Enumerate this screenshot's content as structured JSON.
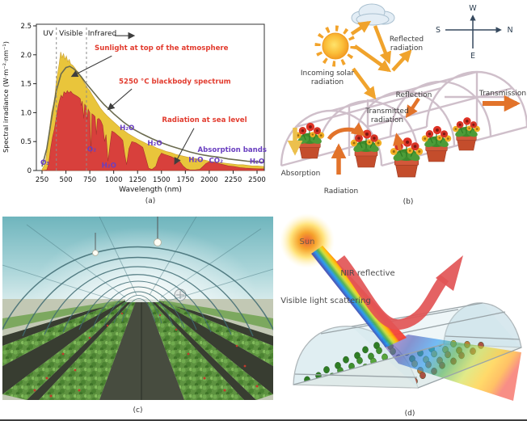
{
  "figure": {
    "captions": {
      "a": "(a)",
      "b": "(b)",
      "c": "(c)",
      "d": "(d)"
    },
    "panel_b": {
      "labels": {
        "reflected_1": "Reflected",
        "reflected_2": "radiation",
        "incoming_1": "Incoming solar",
        "incoming_2": "radiation",
        "reflection": "Reflection",
        "transmitted_1": "Transmitted",
        "transmitted_2": "radiation",
        "transmission": "Transmission",
        "absorption": "Absorption",
        "radiation": "Radiation"
      },
      "compass": {
        "up": "W",
        "right": "N",
        "left": "S",
        "down": "E"
      },
      "arrow_color": "#f0a32c",
      "arrow_color_dark": "#e2732a",
      "arrow_color_yellow": "#ecc04d"
    },
    "panel_d": {
      "sun_label": "Sun",
      "nir_label": "NIR reflective",
      "visible_label": "Visible light scattering",
      "arrow_color": "#e25556"
    }
  },
  "chart_data": {
    "type": "area",
    "xlabel": "Wavelength (nm)",
    "ylabel": "Spectral irradiance (W·m⁻²·nm⁻¹)",
    "xlim": [
      250,
      2600
    ],
    "ylim": [
      0,
      2.5
    ],
    "xticks": [
      250,
      500,
      750,
      1000,
      1250,
      1500,
      1750,
      2000,
      2250,
      2500
    ],
    "yticks": [
      0,
      0.5,
      1.0,
      1.5,
      2.0,
      2.5
    ],
    "ytick_labels": [
      "0",
      "0.5",
      "1.0",
      "1.5",
      "2.0",
      "2.5"
    ],
    "visible_band_nm": [
      400,
      715
    ],
    "grid": false,
    "legend": "inline annotations",
    "series": [
      {
        "name": "Sunlight at top of the atmosphere",
        "style": "area",
        "color": "#e9c53b",
        "points": [
          [
            250,
            0.02
          ],
          [
            270,
            0.08
          ],
          [
            290,
            0.2
          ],
          [
            310,
            0.45
          ],
          [
            330,
            0.75
          ],
          [
            350,
            1.0
          ],
          [
            370,
            1.15
          ],
          [
            385,
            1.3
          ],
          [
            400,
            1.55
          ],
          [
            415,
            1.7
          ],
          [
            430,
            1.85
          ],
          [
            445,
            2.05
          ],
          [
            460,
            1.95
          ],
          [
            475,
            2.02
          ],
          [
            490,
            1.92
          ],
          [
            505,
            1.98
          ],
          [
            520,
            1.88
          ],
          [
            535,
            1.92
          ],
          [
            550,
            1.84
          ],
          [
            570,
            1.82
          ],
          [
            590,
            1.78
          ],
          [
            610,
            1.73
          ],
          [
            630,
            1.7
          ],
          [
            650,
            1.63
          ],
          [
            670,
            1.58
          ],
          [
            690,
            1.52
          ],
          [
            710,
            1.47
          ],
          [
            730,
            1.42
          ],
          [
            750,
            1.38
          ],
          [
            770,
            1.32
          ],
          [
            800,
            1.24
          ],
          [
            830,
            1.16
          ],
          [
            860,
            1.08
          ],
          [
            900,
            1.0
          ],
          [
            940,
            0.93
          ],
          [
            980,
            0.87
          ],
          [
            1020,
            0.81
          ],
          [
            1060,
            0.75
          ],
          [
            1100,
            0.7
          ],
          [
            1150,
            0.64
          ],
          [
            1200,
            0.59
          ],
          [
            1250,
            0.54
          ],
          [
            1300,
            0.5
          ],
          [
            1350,
            0.46
          ],
          [
            1400,
            0.43
          ],
          [
            1450,
            0.39
          ],
          [
            1500,
            0.36
          ],
          [
            1550,
            0.33
          ],
          [
            1600,
            0.31
          ],
          [
            1650,
            0.28
          ],
          [
            1700,
            0.26
          ],
          [
            1750,
            0.24
          ],
          [
            1800,
            0.22
          ],
          [
            1850,
            0.21
          ],
          [
            1900,
            0.19
          ],
          [
            1950,
            0.18
          ],
          [
            2000,
            0.16
          ],
          [
            2050,
            0.15
          ],
          [
            2100,
            0.14
          ],
          [
            2150,
            0.13
          ],
          [
            2200,
            0.12
          ],
          [
            2250,
            0.11
          ],
          [
            2300,
            0.1
          ],
          [
            2350,
            0.1
          ],
          [
            2400,
            0.09
          ],
          [
            2450,
            0.08
          ],
          [
            2500,
            0.08
          ],
          [
            2570,
            0.07
          ]
        ]
      },
      {
        "name": "Radiation at sea level",
        "style": "area",
        "color": "#d8403c",
        "points": [
          [
            250,
            0
          ],
          [
            300,
            0.01
          ],
          [
            320,
            0.12
          ],
          [
            340,
            0.38
          ],
          [
            360,
            0.58
          ],
          [
            380,
            0.72
          ],
          [
            400,
            0.92
          ],
          [
            420,
            1.12
          ],
          [
            435,
            1.22
          ],
          [
            450,
            1.3
          ],
          [
            465,
            1.26
          ],
          [
            480,
            1.36
          ],
          [
            500,
            1.33
          ],
          [
            515,
            1.38
          ],
          [
            530,
            1.34
          ],
          [
            550,
            1.37
          ],
          [
            570,
            1.33
          ],
          [
            590,
            1.31
          ],
          [
            610,
            1.29
          ],
          [
            630,
            1.27
          ],
          [
            650,
            1.24
          ],
          [
            660,
            1.12
          ],
          [
            670,
            1.2
          ],
          [
            687,
            0.9
          ],
          [
            697,
            1.15
          ],
          [
            710,
            1.1
          ],
          [
            722,
            0.88
          ],
          [
            733,
            1.06
          ],
          [
            750,
            1.0
          ],
          [
            762,
            0.3
          ],
          [
            772,
            0.98
          ],
          [
            790,
            0.96
          ],
          [
            805,
            0.93
          ],
          [
            818,
            0.62
          ],
          [
            830,
            0.89
          ],
          [
            845,
            0.9
          ],
          [
            865,
            0.86
          ],
          [
            885,
            0.78
          ],
          [
            905,
            0.5
          ],
          [
            920,
            0.62
          ],
          [
            940,
            0.16
          ],
          [
            962,
            0.45
          ],
          [
            980,
            0.68
          ],
          [
            1005,
            0.66
          ],
          [
            1040,
            0.61
          ],
          [
            1070,
            0.57
          ],
          [
            1095,
            0.52
          ],
          [
            1115,
            0.28
          ],
          [
            1135,
            0.1
          ],
          [
            1160,
            0.38
          ],
          [
            1190,
            0.5
          ],
          [
            1230,
            0.48
          ],
          [
            1270,
            0.44
          ],
          [
            1305,
            0.4
          ],
          [
            1335,
            0.22
          ],
          [
            1365,
            0.04
          ],
          [
            1400,
            0.02
          ],
          [
            1440,
            0.07
          ],
          [
            1470,
            0.22
          ],
          [
            1500,
            0.3
          ],
          [
            1530,
            0.28
          ],
          [
            1565,
            0.26
          ],
          [
            1600,
            0.24
          ],
          [
            1650,
            0.2
          ],
          [
            1690,
            0.16
          ],
          [
            1725,
            0.08
          ],
          [
            1760,
            0.03
          ],
          [
            1800,
            0.01
          ],
          [
            1850,
            0.01
          ],
          [
            1900,
            0.02
          ],
          [
            1935,
            0.07
          ],
          [
            1965,
            0.12
          ],
          [
            2000,
            0.15
          ],
          [
            2050,
            0.14
          ],
          [
            2100,
            0.12
          ],
          [
            2150,
            0.1
          ],
          [
            2200,
            0.08
          ],
          [
            2260,
            0.07
          ],
          [
            2320,
            0.05
          ],
          [
            2380,
            0.04
          ],
          [
            2450,
            0.035
          ],
          [
            2520,
            0.03
          ],
          [
            2570,
            0.03
          ]
        ]
      },
      {
        "name": "5250 °C blackbody spectrum",
        "style": "line",
        "color": "#6b6b4f",
        "points": [
          [
            250,
            0.07
          ],
          [
            300,
            0.38
          ],
          [
            350,
            0.9
          ],
          [
            400,
            1.38
          ],
          [
            450,
            1.67
          ],
          [
            500,
            1.78
          ],
          [
            540,
            1.8
          ],
          [
            580,
            1.76
          ],
          [
            620,
            1.7
          ],
          [
            660,
            1.62
          ],
          [
            700,
            1.53
          ],
          [
            750,
            1.43
          ],
          [
            800,
            1.33
          ],
          [
            850,
            1.23
          ],
          [
            900,
            1.14
          ],
          [
            950,
            1.06
          ],
          [
            1000,
            0.98
          ],
          [
            1100,
            0.84
          ],
          [
            1200,
            0.72
          ],
          [
            1300,
            0.63
          ],
          [
            1400,
            0.55
          ],
          [
            1500,
            0.48
          ],
          [
            1600,
            0.42
          ],
          [
            1700,
            0.37
          ],
          [
            1800,
            0.32
          ],
          [
            1900,
            0.28
          ],
          [
            2000,
            0.25
          ],
          [
            2100,
            0.23
          ],
          [
            2200,
            0.2
          ],
          [
            2300,
            0.18
          ],
          [
            2400,
            0.16
          ],
          [
            2500,
            0.15
          ],
          [
            2570,
            0.14
          ]
        ]
      }
    ],
    "region_labels": [
      {
        "text": "UV",
        "x": 315,
        "y": 2.33,
        "color": "#1a1a1a"
      },
      {
        "text": "Visible",
        "x": 553,
        "y": 2.33,
        "color": "#1a1a1a"
      },
      {
        "text": "Infrared",
        "x": 880,
        "y": 2.33,
        "color": "#1a1a1a"
      }
    ],
    "annotations": [
      {
        "text": "Sunlight at top of the atmosphere",
        "x": 1500,
        "y": 2.08,
        "color": "#e23b2e"
      },
      {
        "text": "5250 °C blackbody spectrum",
        "x": 1640,
        "y": 1.5,
        "color": "#e23b2e"
      },
      {
        "text": "Radiation at sea level",
        "x": 1950,
        "y": 0.84,
        "color": "#e23b2e"
      },
      {
        "text": "Absorption bands",
        "x": 2240,
        "y": 0.32,
        "color": "#6a3fc0"
      },
      {
        "text": "H₂O",
        "x": 1140,
        "y": 0.7,
        "color": "#6a3fc0"
      },
      {
        "text": "H₂O",
        "x": 1430,
        "y": 0.43,
        "color": "#6a3fc0"
      },
      {
        "text": "H₂O",
        "x": 950,
        "y": 0.05,
        "color": "#6a3fc0"
      },
      {
        "text": "H₂O",
        "x": 1860,
        "y": 0.15,
        "color": "#6a3fc0"
      },
      {
        "text": "H₂O",
        "x": 2500,
        "y": 0.12,
        "color": "#6a3fc0"
      },
      {
        "text": "CO₂",
        "x": 2070,
        "y": 0.13,
        "color": "#6a3fc0"
      },
      {
        "text": "O₂",
        "x": 770,
        "y": 0.33,
        "color": "#6a3fc0"
      },
      {
        "text": "O₃",
        "x": 280,
        "y": 0.1,
        "color": "#6a3fc0"
      }
    ],
    "arrows": [
      {
        "x1": 980,
        "y1": 1.98,
        "x2": 565,
        "y2": 1.63
      },
      {
        "x1": 1190,
        "y1": 1.41,
        "x2": 945,
        "y2": 1.06
      },
      {
        "x1": 1840,
        "y1": 0.73,
        "x2": 1640,
        "y2": 0.12
      },
      {
        "x1": 1010,
        "y1": 2.33,
        "x2": 1210,
        "y2": 2.33
      }
    ]
  }
}
